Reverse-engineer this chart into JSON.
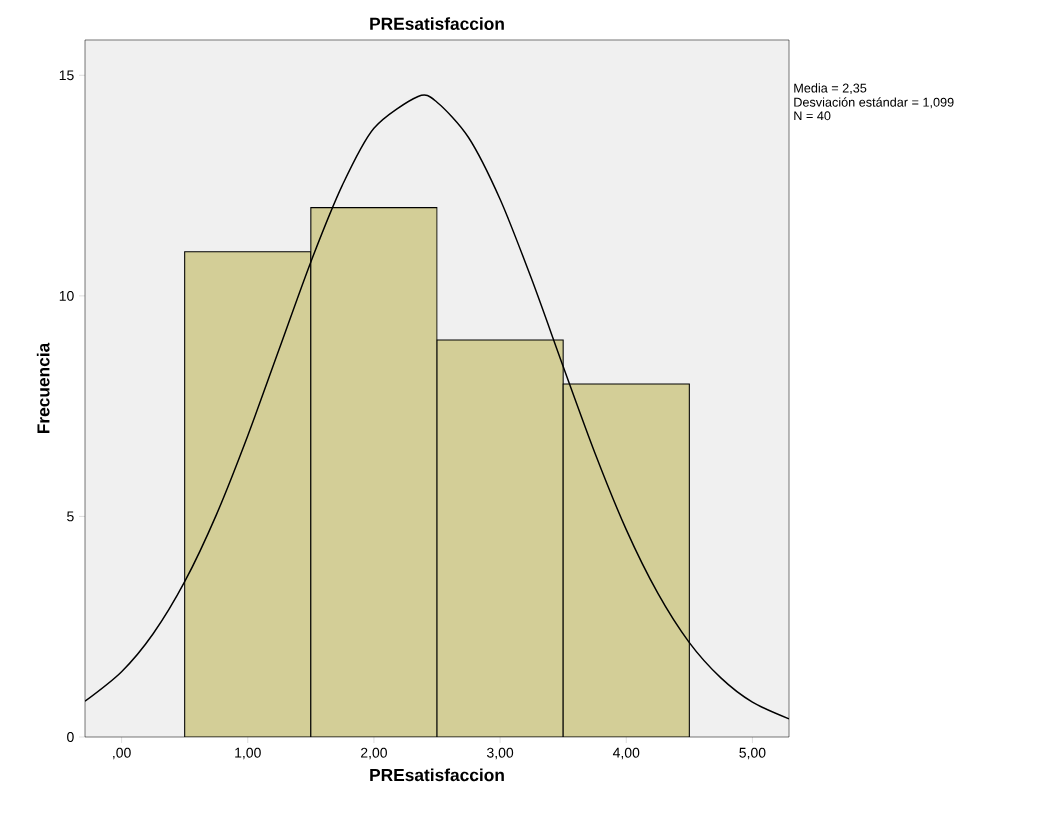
{
  "chart_data": {
    "type": "histogram",
    "title": "PREsatisfaccion",
    "xlabel": "PREsatisfaccion",
    "ylabel": "Frecuencia",
    "bins": [
      0.5,
      1.5,
      2.5,
      3.5,
      4.5
    ],
    "values": [
      11,
      12,
      9,
      8
    ],
    "color": "#d3ce97",
    "series": [
      {
        "type": "line",
        "color": "#000000",
        "x": [
          -0.29,
          0,
          0.25,
          0.5,
          0.75,
          1.0,
          1.25,
          1.5,
          1.75,
          2.0,
          2.35,
          2.5,
          2.75,
          3.0,
          3.25,
          3.5,
          3.75,
          4.0,
          4.25,
          4.5,
          4.75,
          5.0,
          5.29
        ],
        "values": [
          0.81,
          1.48,
          2.34,
          3.52,
          5.03,
          6.83,
          8.8,
          10.77,
          12.51,
          13.8,
          14.52,
          14.39,
          13.59,
          12.19,
          10.38,
          8.4,
          6.45,
          4.7,
          3.26,
          2.14,
          1.34,
          0.79,
          0.41
        ]
      }
    ],
    "xlim": [
      -0.29,
      5.29
    ],
    "ylim": [
      0,
      15.8
    ],
    "xticks": [
      {
        "value": 0,
        "label": ",00"
      },
      {
        "value": 1,
        "label": "1,00"
      },
      {
        "value": 2,
        "label": "2,00"
      },
      {
        "value": 3,
        "label": "3,00"
      },
      {
        "value": 4,
        "label": "4,00"
      },
      {
        "value": 5,
        "label": "5,00"
      }
    ],
    "yticks": [
      0,
      5,
      10,
      15
    ],
    "annotations": [
      "Media = 2,35",
      "Desviación estándar = 1,099",
      "N = 40"
    ]
  }
}
